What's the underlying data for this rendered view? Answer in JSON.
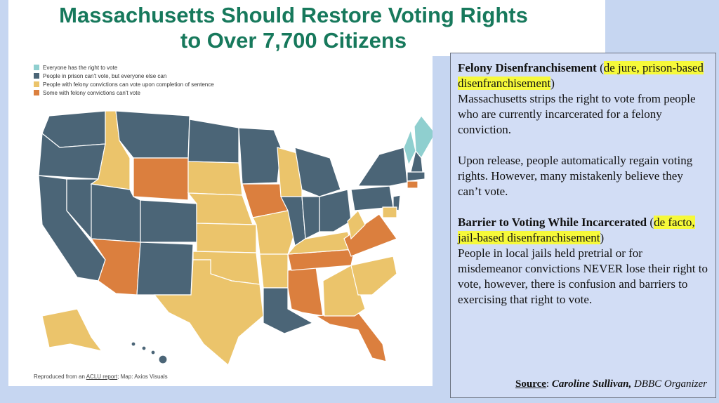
{
  "title": {
    "lines": [
      "Massachusetts Should Restore Voting Rights",
      "to Over 7,700 Citizens"
    ]
  },
  "legend": [
    {
      "label": "Everyone has the right to vote",
      "color": "#8fcfcf"
    },
    {
      "label": "People in prison can't vote, but everyone else can",
      "color": "#4b6577"
    },
    {
      "label": "People with felony convictions can vote upon completion of sentence",
      "color": "#ebc46b"
    },
    {
      "label": "Some with felony convictions can't vote",
      "color": "#db7f3e"
    }
  ],
  "credit": [
    {
      "text": "Reproduced from an ",
      "style": "plain"
    },
    {
      "text": "ACLU report",
      "style": "link"
    },
    {
      "text": "; Map: Axios Visuals",
      "style": "plain"
    }
  ],
  "textbox": {
    "paragraphs": [
      {
        "gap": false,
        "segments": [
          {
            "text": "Felony Disenfranchisement",
            "style": "bold"
          },
          {
            "text": " (",
            "style": "plain"
          },
          {
            "text": "de jure, prison-based disenfranchisement",
            "style": "highlight"
          },
          {
            "text": ")",
            "style": "plain"
          }
        ]
      },
      {
        "gap": false,
        "segments": [
          {
            "text": "Massachusetts strips the right to vote from people who are currently incarcerated for a felony conviction.",
            "style": "plain"
          }
        ]
      },
      {
        "gap": true,
        "segments": [
          {
            "text": "Upon release, people automatically regain voting rights. However, many mistakenly believe they can’t vote.",
            "style": "plain"
          }
        ]
      },
      {
        "gap": true,
        "segments": [
          {
            "text": "Barrier to Voting While Incarcerated",
            "style": "bold"
          },
          {
            "text": " (",
            "style": "plain"
          },
          {
            "text": "de facto, jail-based disenfranchisement",
            "style": "highlight"
          },
          {
            "text": ")",
            "style": "plain"
          }
        ]
      },
      {
        "gap": false,
        "segments": [
          {
            "text": "People in local jails held pretrial or for misdemeanor convictions NEVER lose their right to vote, however, there is confusion and barriers to exercising that right to vote.",
            "style": "plain"
          }
        ]
      }
    ],
    "source": [
      {
        "text": "Source",
        "style": "bold-underline"
      },
      {
        "text": ": ",
        "style": "plain"
      },
      {
        "text": "Caroline Sullivan,",
        "style": "bold-italic"
      },
      {
        "text": " DBBC Organizer",
        "style": "italic"
      }
    ]
  }
}
